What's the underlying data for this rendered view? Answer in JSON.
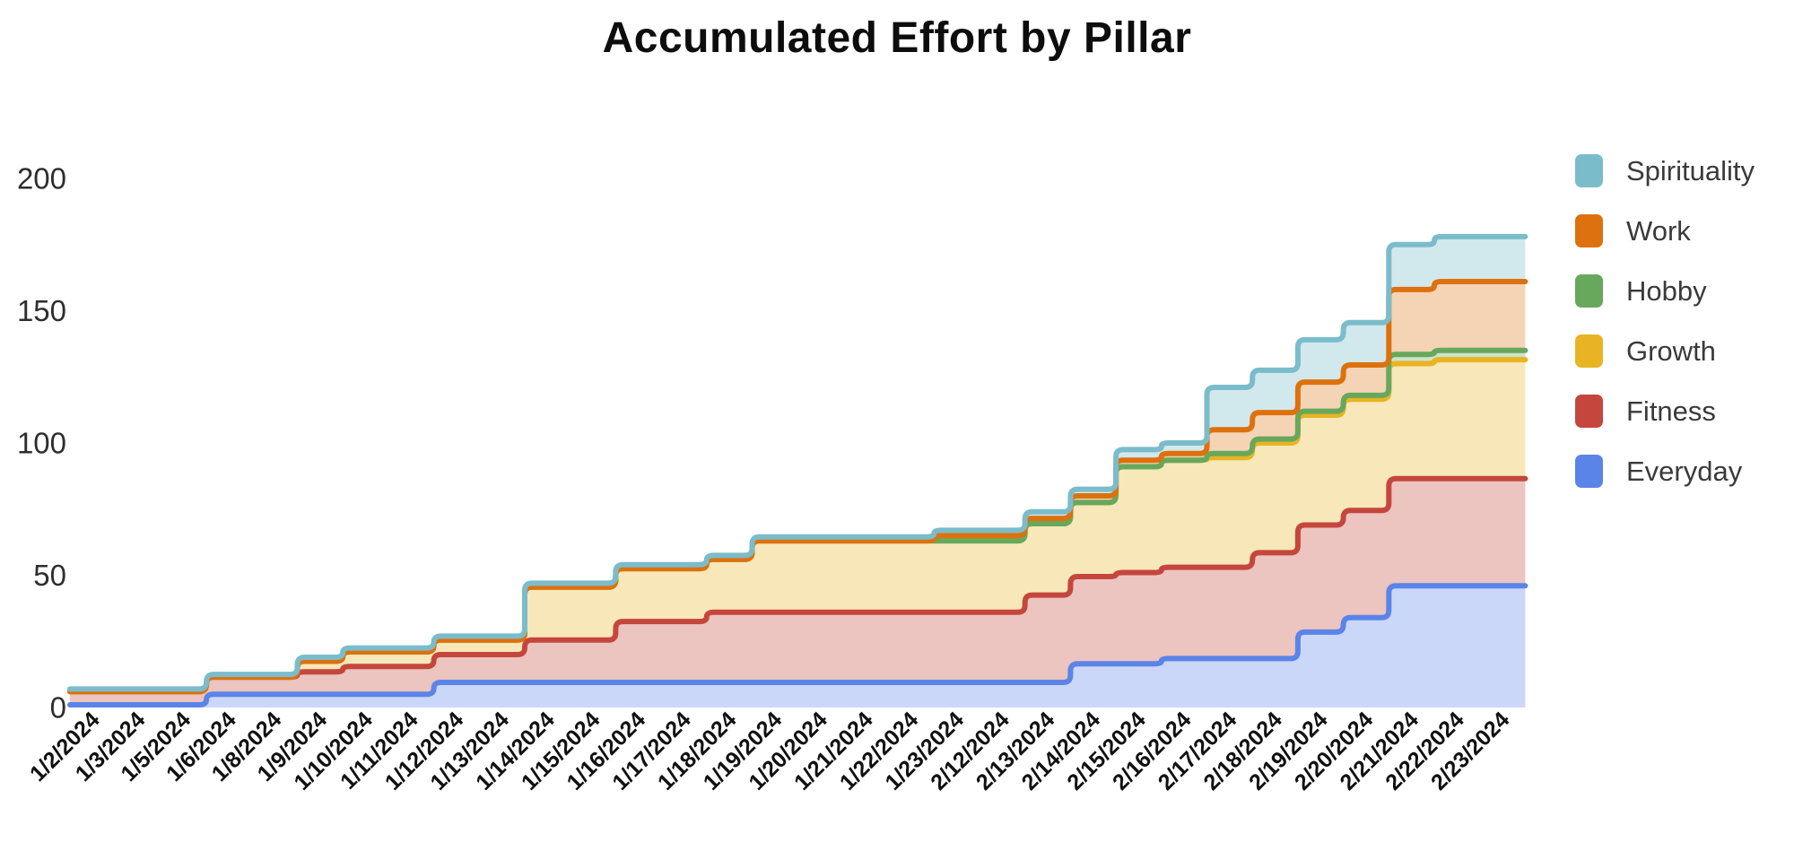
{
  "page": {
    "background": "#ffffff"
  },
  "chart_data": {
    "type": "area",
    "subtype": "stepped-area-stacked",
    "title": "Accumulated Effort by Pillar",
    "grid": false,
    "legend_position": "right",
    "x_type": "category",
    "categories": [
      "1/2/2024",
      "1/3/2024",
      "1/5/2024",
      "1/6/2024",
      "1/8/2024",
      "1/9/2024",
      "1/10/2024",
      "1/11/2024",
      "1/12/2024",
      "1/13/2024",
      "1/14/2024",
      "1/15/2024",
      "1/16/2024",
      "1/17/2024",
      "1/18/2024",
      "1/19/2024",
      "1/20/2024",
      "1/21/2024",
      "1/22/2024",
      "1/23/2024",
      "2/12/2024",
      "2/13/2024",
      "2/14/2024",
      "2/15/2024",
      "2/16/2024",
      "2/17/2024",
      "2/18/2024",
      "2/19/2024",
      "2/20/2024",
      "2/21/2024",
      "2/22/2024",
      "2/23/2024"
    ],
    "y_axis": {
      "min": 0,
      "max": 200,
      "ticks": [
        0,
        50,
        100,
        150,
        200
      ]
    },
    "stack_order_bottom_to_top": [
      "Everyday",
      "Fitness",
      "Growth",
      "Hobby",
      "Work",
      "Spirituality"
    ],
    "series": [
      {
        "name": "Spirituality",
        "color": "#7bbccb",
        "fill": "rgba(123,188,203,0.35)",
        "values": [
          1,
          1,
          1,
          1,
          1,
          1.5,
          1.5,
          1.5,
          1.5,
          1.5,
          1.5,
          1.5,
          1.5,
          1.5,
          1.5,
          1.5,
          1.5,
          1.5,
          1.5,
          2,
          2,
          2.5,
          2.5,
          4,
          4,
          16,
          16,
          16,
          16,
          17,
          17,
          17
        ]
      },
      {
        "name": "Work",
        "color": "#dd710d",
        "fill": "rgba(221,113,13,0.30)",
        "values": [
          0,
          0,
          0,
          0,
          0,
          0,
          0,
          0,
          0,
          0,
          0,
          0,
          0,
          0,
          0,
          0,
          0,
          0,
          0,
          2,
          2,
          2,
          2.5,
          2.5,
          2.5,
          9,
          10,
          11,
          11.5,
          24.5,
          26,
          26
        ]
      },
      {
        "name": "Hobby",
        "color": "#67a85c",
        "fill": "rgba(103,168,92,0.32)",
        "values": [
          0,
          0,
          0,
          0,
          0,
          0,
          0,
          0,
          0,
          0,
          0,
          0,
          0,
          0,
          0,
          0,
          0,
          0,
          0,
          0,
          0,
          0,
          0,
          0,
          0,
          1.5,
          1.5,
          1.5,
          1.5,
          3.5,
          3.5,
          3.5
        ]
      },
      {
        "name": "Growth",
        "color": "#e8b423",
        "fill": "rgba(232,180,35,0.32)",
        "values": [
          0,
          0,
          0,
          0,
          0,
          4,
          5.5,
          5.5,
          5.5,
          5.5,
          20,
          20,
          20,
          20,
          20,
          27,
          27,
          27,
          27,
          27,
          27,
          27,
          28,
          40,
          40.5,
          41.5,
          41.5,
          41.5,
          42,
          43.5,
          45,
          45
        ]
      },
      {
        "name": "Fitness",
        "color": "#c5463c",
        "fill": "rgba(197,70,60,0.32)",
        "values": [
          5,
          5,
          5,
          6.5,
          6.5,
          8.5,
          10.5,
          10.5,
          10.5,
          10.5,
          16,
          16,
          23,
          23,
          26.5,
          26.5,
          26.5,
          26.5,
          26.5,
          26.5,
          26.5,
          33,
          33,
          34.5,
          34.5,
          34.5,
          40,
          40.5,
          40.5,
          40.5,
          40.5,
          40.5
        ]
      },
      {
        "name": "Everyday",
        "color": "#5b84e8",
        "fill": "rgba(91,132,232,0.32)",
        "values": [
          1,
          1,
          1,
          5,
          5,
          5,
          5,
          5,
          9.5,
          9.5,
          9.5,
          9.5,
          9.5,
          9.5,
          9.5,
          9.5,
          9.5,
          9.5,
          9.5,
          9.5,
          9.5,
          9.5,
          16.5,
          16.5,
          18.5,
          18.5,
          18.5,
          28.5,
          34,
          46,
          46,
          46
        ]
      }
    ]
  }
}
